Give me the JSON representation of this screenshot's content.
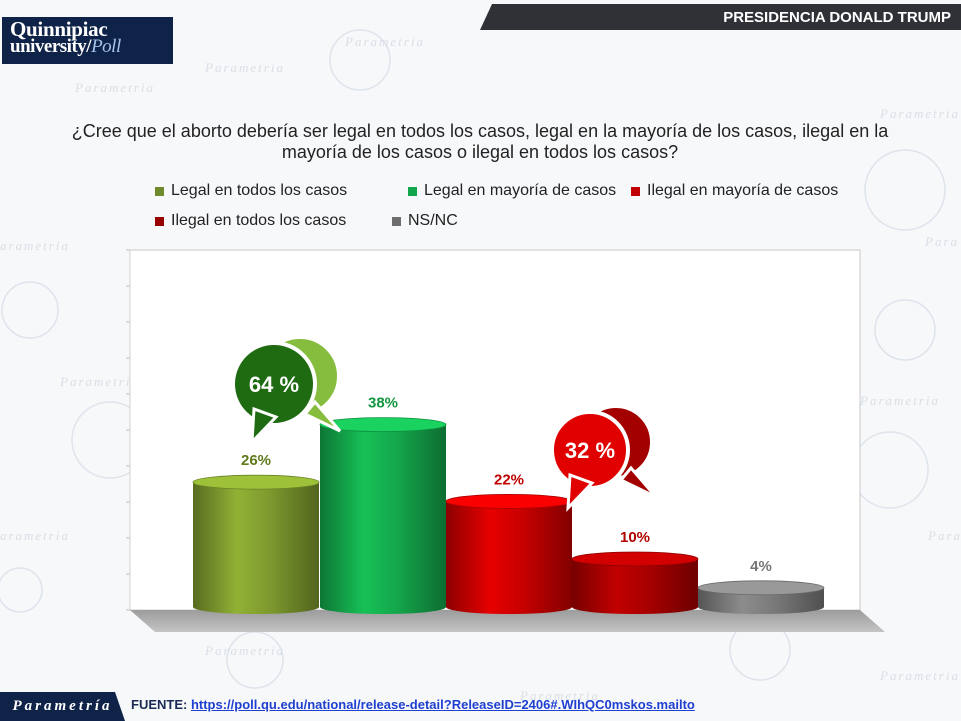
{
  "header": {
    "title": "PRESIDENCIA DONALD TRUMP"
  },
  "logo": {
    "line1": "Quinnipiac",
    "line2": "university",
    "poll": "Poll"
  },
  "question": "¿Cree que el aborto debería ser legal en todos los casos, legal en la mayoría de los casos, ilegal en la mayoría de los casos o ilegal en todos los casos?",
  "legend": [
    {
      "label": "Legal en todos los casos",
      "color": "#6f8a2c"
    },
    {
      "label": "Legal en mayoría de casos",
      "color": "#12a64a"
    },
    {
      "label": "Ilegal en mayoría de casos",
      "color": "#c00000"
    },
    {
      "label": "Ilegal en todos los casos",
      "color": "#990000"
    },
    {
      "label": "NS/NC",
      "color": "#6d6d6d"
    }
  ],
  "chart_data": {
    "type": "bar",
    "categories": [
      "Legal en todos los casos",
      "Legal en mayoría de casos",
      "Ilegal en mayoría de casos",
      "Ilegal en todos los casos",
      "NS/NC"
    ],
    "values": [
      26,
      38,
      22,
      10,
      4
    ],
    "data_labels": [
      "26%",
      "38%",
      "22%",
      "10%",
      "4%"
    ],
    "colors": [
      "#7e9a2e",
      "#14a84c",
      "#c80000",
      "#a80000",
      "#7a7a7a"
    ],
    "label_colors": [
      "#5f7a1a",
      "#12963f",
      "#c00000",
      "#b00000",
      "#777777"
    ],
    "ylim": [
      0,
      50
    ],
    "grid": false,
    "legend_position": "top",
    "callouts": [
      {
        "text": "64 %",
        "color_dark": "#1e6b12",
        "color_light": "#86bd3f"
      },
      {
        "text": "32 %",
        "color_dark": "#e00000",
        "color_light": "#a30000"
      }
    ]
  },
  "footer": {
    "brand": "Parametría",
    "source_label": "FUENTE: ",
    "source_link": "https://poll.qu.edu/national/release-detail?ReleaseID=2406#.WIhQC0mskos.mailto"
  }
}
